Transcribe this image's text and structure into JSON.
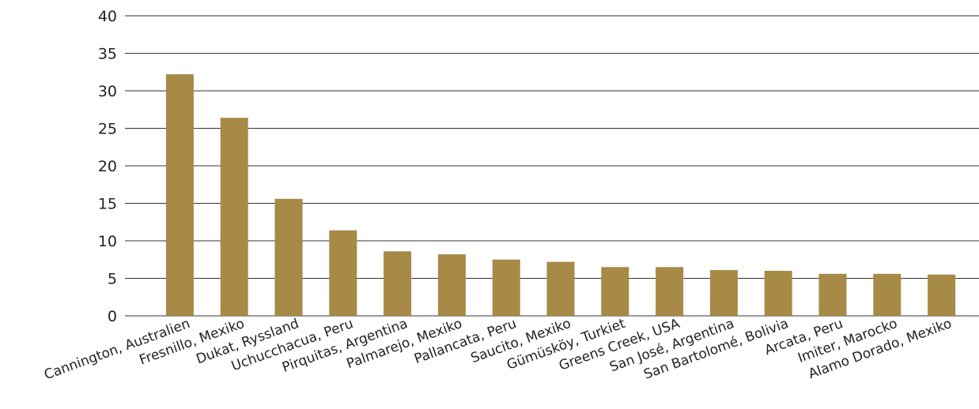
{
  "chart_data": {
    "type": "bar",
    "title": "",
    "xlabel": "",
    "ylabel": "",
    "ylim": [
      0,
      40
    ],
    "yticks": [
      0,
      5,
      10,
      15,
      20,
      25,
      30,
      35,
      40
    ],
    "grid": true,
    "bar_color": "#A68A45",
    "categories": [
      "Cannington, Australien",
      "Fresnillo, Mexiko",
      "Dukat, Ryssland",
      "Uchucchacua, Peru",
      "Pirquitas, Argentina",
      "Palmarejo, Mexiko",
      "Pallancata, Peru",
      "Saucito, Mexiko",
      "Gümüsköy, Turkiet",
      "Greens Creek, USA",
      "San José, Argentina",
      "San Bartolomé, Bolivia",
      "Arcata, Peru",
      "Imiter, Marocko",
      "Alamo Dorado, Mexiko"
    ],
    "values": [
      32.2,
      26.4,
      15.6,
      11.4,
      8.6,
      8.2,
      7.5,
      7.2,
      6.5,
      6.5,
      6.1,
      6.0,
      5.6,
      5.6,
      5.5
    ]
  }
}
